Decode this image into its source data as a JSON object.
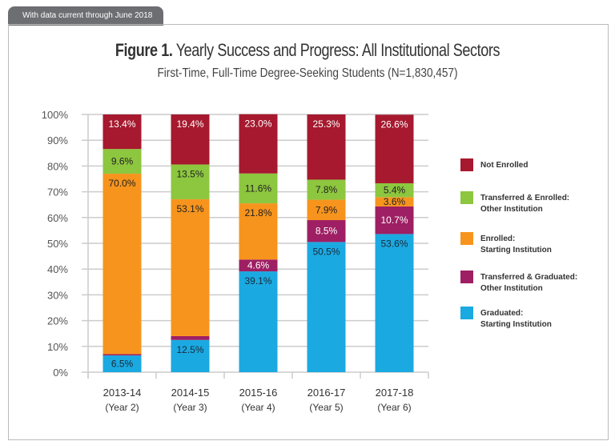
{
  "header": {
    "tab": "With data current through June 2018"
  },
  "chart_data": {
    "type": "bar",
    "stacked": true,
    "title_bold": "Figure 1.",
    "title": "Yearly Success and Progress: All Institutional Sectors",
    "subtitle": "First-Time, Full-Time Degree-Seeking Students (N=1,830,457)",
    "categories": [
      "2013-14",
      "2014-15",
      "2015-16",
      "2016-17",
      "2017-18"
    ],
    "category_sublabels": [
      "(Year 2)",
      "(Year 3)",
      "(Year 4)",
      "(Year 5)",
      "(Year 6)"
    ],
    "ylim": [
      0,
      100
    ],
    "yticks": [
      "0%",
      "10%",
      "20%",
      "30%",
      "40%",
      "50%",
      "60%",
      "70%",
      "80%",
      "90%",
      "100%"
    ],
    "grid": true,
    "legend_position": "right",
    "series": [
      {
        "name": "Graduated: Starting Institution",
        "name_lines": [
          "Graduated:",
          "Starting Institution"
        ],
        "color": "#1ba9e1",
        "values": [
          6.5,
          12.5,
          39.1,
          50.5,
          53.6
        ],
        "labels": [
          "6.5%",
          "12.5%",
          "39.1%",
          "50.5%",
          "53.6%"
        ]
      },
      {
        "name": "Transferred & Graduated: Other Institution",
        "name_lines": [
          "Transferred & Graduated:",
          "Other Institution"
        ],
        "color": "#9e1f63",
        "values": [
          0.5,
          1.5,
          4.6,
          8.5,
          10.7
        ],
        "labels": [
          "0.5%",
          "1.5%",
          "4.6%",
          "8.5%",
          "10.7%"
        ]
      },
      {
        "name": "Enrolled: Starting Institution",
        "name_lines": [
          "Enrolled:",
          "Starting Institution"
        ],
        "color": "#f7941d",
        "values": [
          70.0,
          53.1,
          21.8,
          7.9,
          3.6
        ],
        "labels": [
          "70.0%",
          "53.1%",
          "21.8%",
          "7.9%",
          "3.6%"
        ]
      },
      {
        "name": "Transferred & Enrolled: Other Institution",
        "name_lines": [
          "Transferred & Enrolled:",
          "Other Institution"
        ],
        "color": "#8dc63f",
        "values": [
          9.6,
          13.5,
          11.6,
          7.8,
          5.4
        ],
        "labels": [
          "9.6%",
          "13.5%",
          "11.6%",
          "7.8%",
          "5.4%"
        ]
      },
      {
        "name": "Not Enrolled",
        "name_lines": [
          "Not Enrolled"
        ],
        "color": "#a6192e",
        "values": [
          13.4,
          19.4,
          23.0,
          25.3,
          26.6
        ],
        "labels": [
          "13.4%",
          "19.4%",
          "23.0%",
          "25.3%",
          "26.6%"
        ]
      }
    ]
  }
}
